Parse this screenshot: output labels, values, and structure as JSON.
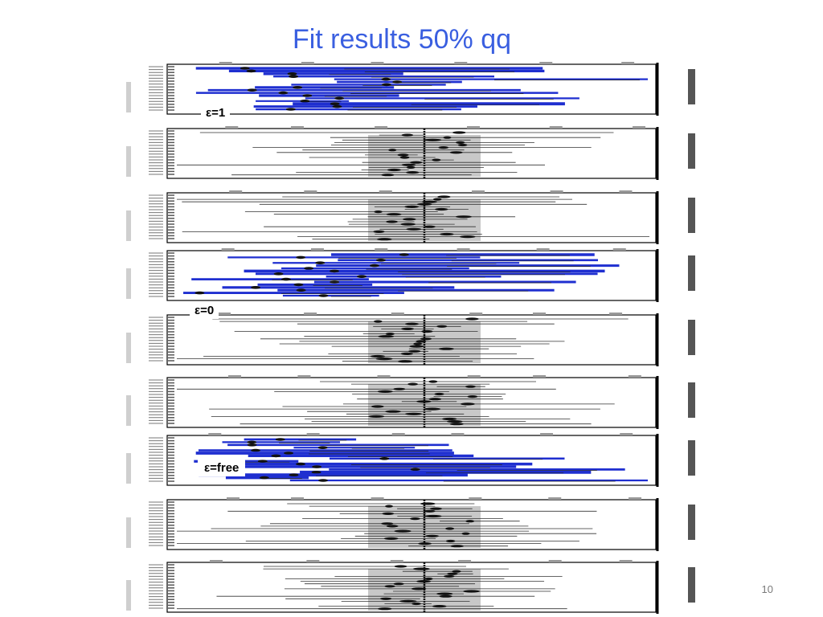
{
  "slide": {
    "title": "Fit results 50% qq",
    "page_number": "10"
  },
  "labels": {
    "eps_one": "ε=1",
    "eps_zero": "ε=0",
    "eps_free": "ε=free"
  },
  "panels": [
    {
      "style": "blue"
    },
    {
      "style": "gray"
    },
    {
      "style": "gray"
    },
    {
      "style": "blue"
    },
    {
      "style": "gray"
    },
    {
      "style": "gray"
    },
    {
      "style": "blue"
    },
    {
      "style": "gray"
    },
    {
      "style": "gray"
    }
  ],
  "colors": {
    "title": "#3a5fe0",
    "fit_blue": "#1f2fd0",
    "band_gray": "#c8c8c8"
  }
}
